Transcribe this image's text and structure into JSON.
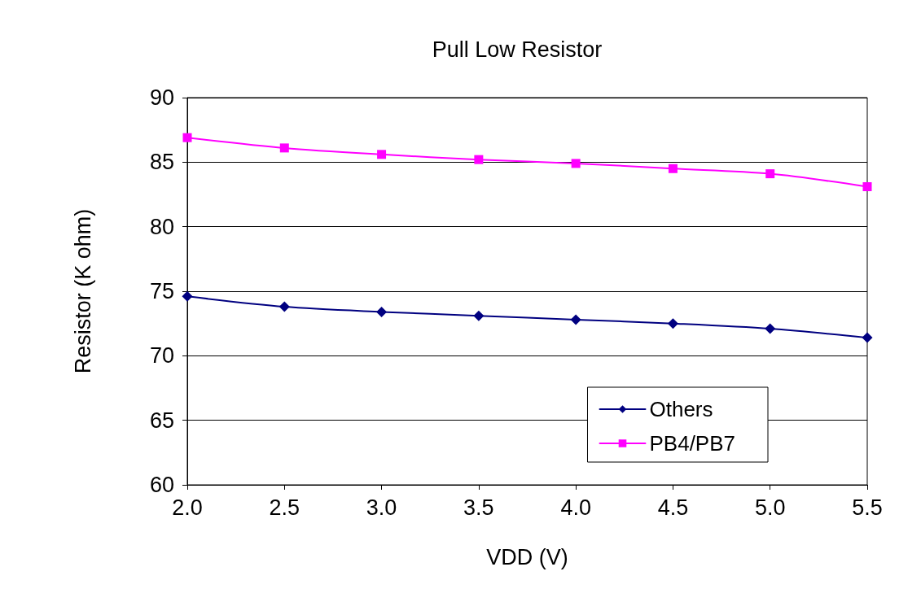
{
  "chart_data": {
    "type": "line",
    "title": "Pull Low Resistor",
    "xlabel": "VDD (V)",
    "ylabel": "Resistor (K ohm)",
    "x": [
      2.0,
      2.5,
      3.0,
      3.5,
      4.0,
      4.5,
      5.0,
      5.5
    ],
    "series": [
      {
        "name": "Others",
        "color": "#000080",
        "marker": "diamond",
        "values": [
          74.6,
          73.8,
          73.4,
          73.1,
          72.8,
          72.5,
          72.1,
          71.4
        ]
      },
      {
        "name": "PB4/PB7",
        "color": "#ff00ff",
        "marker": "square",
        "values": [
          86.9,
          86.1,
          85.6,
          85.2,
          84.9,
          84.5,
          84.1,
          83.1
        ]
      }
    ],
    "xlim": [
      2.0,
      5.5
    ],
    "xticks": [
      {
        "value": 2,
        "label": "2.0"
      },
      2.5,
      {
        "value": 3,
        "label": "3.0"
      },
      3.5,
      {
        "value": 4,
        "label": "4.0"
      },
      4.5,
      {
        "value": 5,
        "label": "5.0"
      },
      5.5
    ],
    "ylim": [
      60,
      90
    ],
    "yticks": [
      60,
      65,
      70,
      75,
      80,
      85,
      90
    ],
    "grid": "y",
    "legend": "bottom right",
    "line_style": "solid"
  }
}
